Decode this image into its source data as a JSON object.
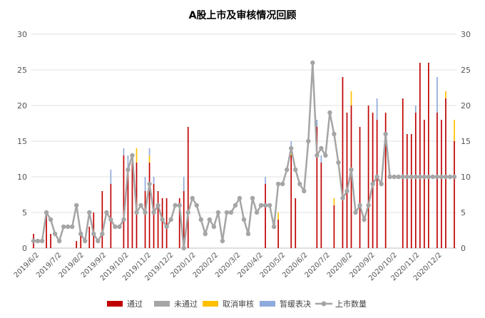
{
  "chart_data": {
    "type": "bar",
    "title": "A股上市及审核情况回顾",
    "ylim": [
      0,
      30
    ],
    "y_ticks": [
      0,
      5,
      10,
      15,
      20,
      25,
      30
    ],
    "y2lim": [
      0,
      30
    ],
    "y2_ticks": [
      0,
      5,
      10,
      15,
      20,
      25,
      30
    ],
    "grid": "horizontal",
    "stacked": true,
    "legend_position": "bottom",
    "x_tick_labels": [
      "2019/6/2",
      "2019/7/2",
      "2019/8/2",
      "2019/9/2",
      "2019/10/2",
      "2019/11/2",
      "2019/12/2",
      "2020/1/2",
      "2020/2/2",
      "2020/3/2",
      "2020/4/2",
      "2020/5/2",
      "2020/6/2",
      "2020/7/2",
      "2020/8/2",
      "2020/9/2",
      "2020/10/2",
      "2020/11/2",
      "2020/12/2"
    ],
    "series": [
      {
        "name": "通过",
        "type": "bar",
        "color": "#c00000",
        "values": [
          2,
          0,
          0,
          5,
          2,
          0,
          0,
          0,
          0,
          0,
          1,
          2,
          0,
          3,
          5,
          0,
          8,
          0,
          9,
          0,
          0,
          13,
          11,
          12,
          12,
          0,
          8,
          12,
          9,
          8,
          7,
          7,
          0,
          0,
          7,
          8,
          17,
          0,
          0,
          0,
          0,
          0,
          0,
          0,
          0,
          0,
          0,
          0,
          0,
          0,
          0,
          0,
          0,
          0,
          9,
          0,
          0,
          4,
          0,
          0,
          13,
          7,
          0,
          0,
          0,
          0,
          17,
          12,
          0,
          0,
          6,
          0,
          24,
          19,
          20,
          0,
          17,
          0,
          20,
          19,
          18,
          0,
          19,
          0,
          0,
          0,
          21,
          16,
          16,
          19,
          26,
          18,
          26,
          0,
          19,
          18,
          21,
          0,
          15
        ]
      },
      {
        "name": "未通过",
        "type": "bar",
        "color": "#a5a5a5",
        "values": [
          0,
          0,
          0,
          0,
          0,
          0,
          0,
          0,
          0,
          0,
          0,
          0,
          0,
          0,
          0,
          0,
          0,
          0,
          0,
          0,
          0,
          0,
          0,
          0,
          0,
          0,
          0,
          0,
          0,
          0,
          0,
          0,
          0,
          0,
          0,
          0,
          0,
          0,
          0,
          0,
          0,
          0,
          0,
          0,
          0,
          0,
          0,
          0,
          0,
          0,
          0,
          0,
          0,
          0,
          0,
          0,
          0,
          0,
          0,
          0,
          0,
          0,
          0,
          0,
          0,
          0,
          0,
          0,
          0,
          0,
          0,
          0,
          0,
          0,
          0,
          0,
          0,
          0,
          0,
          0,
          0,
          0,
          0,
          0,
          0,
          0,
          0,
          0,
          0,
          0,
          0,
          0,
          0,
          0,
          0,
          0,
          0,
          0,
          0
        ]
      },
      {
        "name": "取消审核",
        "type": "bar",
        "color": "#ffc000",
        "values": [
          0,
          0,
          0,
          0,
          0,
          0,
          0,
          0,
          0,
          0,
          0,
          0,
          0,
          0,
          0,
          0,
          0,
          0,
          0,
          0,
          0,
          0,
          0,
          0,
          2,
          0,
          0,
          1,
          0,
          0,
          0,
          0,
          0,
          0,
          0,
          0,
          0,
          0,
          0,
          0,
          0,
          0,
          0,
          0,
          0,
          0,
          0,
          0,
          0,
          0,
          0,
          0,
          0,
          0,
          0,
          0,
          0,
          1,
          0,
          0,
          1,
          0,
          0,
          0,
          0,
          0,
          0,
          0,
          0,
          0,
          1,
          0,
          0,
          0,
          2,
          0,
          0,
          0,
          0,
          0,
          0,
          0,
          0,
          0,
          0,
          0,
          0,
          0,
          0,
          0,
          0,
          0,
          0,
          0,
          0,
          0,
          1,
          0,
          3
        ]
      },
      {
        "name": "暂缓表决",
        "type": "bar",
        "color": "#8faadc",
        "values": [
          0,
          0,
          0,
          0,
          0,
          0,
          0,
          0,
          0,
          0,
          0,
          0,
          0,
          0,
          0,
          0,
          0,
          0,
          2,
          0,
          0,
          1,
          2,
          0,
          0,
          0,
          2,
          1,
          1,
          0,
          0,
          0,
          0,
          0,
          0,
          2,
          0,
          0,
          0,
          0,
          0,
          0,
          0,
          0,
          0,
          0,
          0,
          0,
          0,
          0,
          0,
          0,
          0,
          0,
          1,
          0,
          0,
          0,
          0,
          0,
          1,
          0,
          0,
          0,
          0,
          0,
          1,
          1,
          0,
          0,
          0,
          0,
          0,
          0,
          0,
          0,
          0,
          0,
          0,
          0,
          3,
          0,
          0,
          0,
          0,
          0,
          0,
          0,
          0,
          1,
          0,
          0,
          0,
          0,
          5,
          0,
          0,
          0,
          0
        ]
      },
      {
        "name": "上市数量",
        "type": "line",
        "color": "#a5a5a5",
        "axis": "secondary",
        "values": [
          1,
          1,
          1,
          5,
          4,
          2,
          1,
          3,
          3,
          3,
          6,
          2,
          1,
          5,
          2,
          1,
          2,
          5,
          4,
          3,
          3,
          4,
          11,
          13,
          5,
          6,
          5,
          9,
          5,
          6,
          4,
          3,
          4,
          6,
          6,
          0,
          5,
          7,
          6,
          4,
          2,
          4,
          3,
          5,
          1,
          5,
          5,
          6,
          7,
          4,
          2,
          7,
          5,
          6,
          6,
          6,
          3,
          9,
          9,
          11,
          14,
          11,
          9,
          8,
          15,
          26,
          13,
          14,
          13,
          19,
          16,
          12,
          7,
          8,
          11,
          5,
          6,
          4,
          6,
          9,
          10,
          9,
          16,
          10,
          10,
          10,
          10,
          10,
          10,
          10,
          10,
          10,
          10,
          10,
          10,
          10,
          10,
          10,
          10
        ]
      }
    ]
  }
}
